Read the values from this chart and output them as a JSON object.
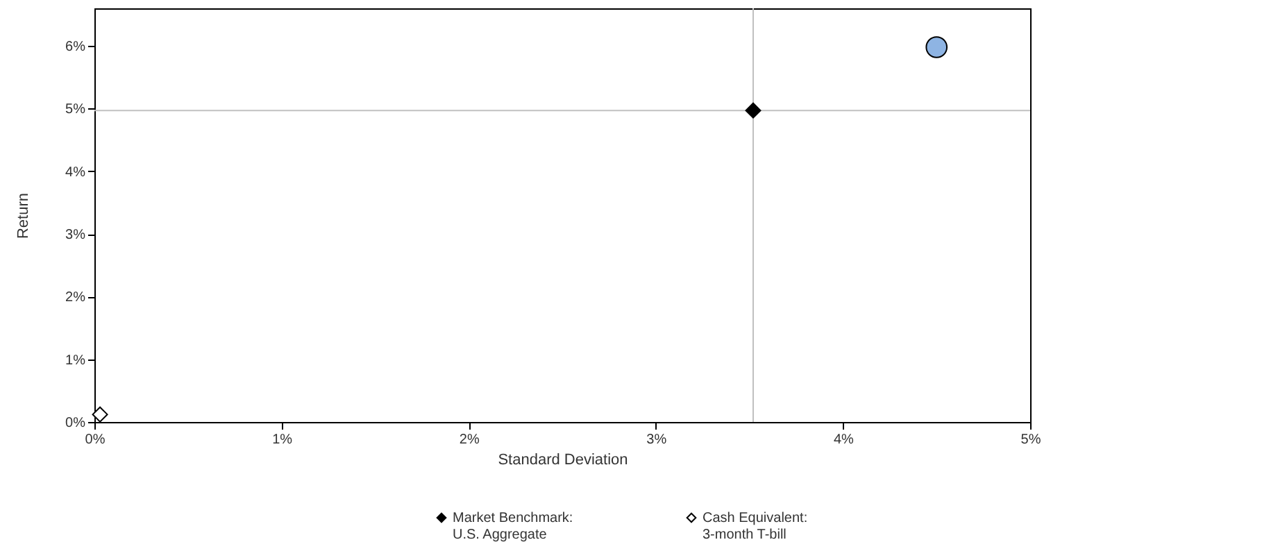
{
  "chart_data": {
    "type": "scatter",
    "xlabel": "Standard Deviation",
    "ylabel": "Return",
    "series": [
      {
        "name": null,
        "color": "#8eb4e3",
        "marker": "circle",
        "x": [
          4.5
        ],
        "values": [
          5.98
        ]
      },
      {
        "name": "Market Benchmark:\nU.S. Aggregate",
        "color": "#000000",
        "marker": "diamond",
        "x": [
          3.52
        ],
        "values": [
          4.97
        ]
      },
      {
        "name": "Cash Equivalent:\n3-month T-bill",
        "color": "#ffffff",
        "marker": "diamond",
        "x": [
          0.03
        ],
        "values": [
          0.12
        ]
      }
    ],
    "xlim": [
      0,
      5
    ],
    "ylim": [
      0,
      6.6
    ],
    "xticks": [
      {
        "value": 0,
        "label": "0%"
      },
      {
        "value": 1,
        "label": "1%"
      },
      {
        "value": 2,
        "label": "2%"
      },
      {
        "value": 3,
        "label": "3%"
      },
      {
        "value": 4,
        "label": "4%"
      },
      {
        "value": 5,
        "label": "5%"
      }
    ],
    "yticks": [
      {
        "value": 0,
        "label": "0%"
      },
      {
        "value": 1,
        "label": "1%"
      },
      {
        "value": 2,
        "label": "2%"
      },
      {
        "value": 3,
        "label": "3%"
      },
      {
        "value": 4,
        "label": "4%"
      },
      {
        "value": 5,
        "label": "5%"
      },
      {
        "value": 6,
        "label": "6%"
      }
    ],
    "ref_lines": [
      {
        "axis": "x",
        "value": 3.52,
        "color": "#c0c0c0"
      },
      {
        "axis": "y",
        "value": 4.97,
        "color": "#c0c0c0"
      }
    ],
    "grid": false,
    "legend": "bottom"
  }
}
